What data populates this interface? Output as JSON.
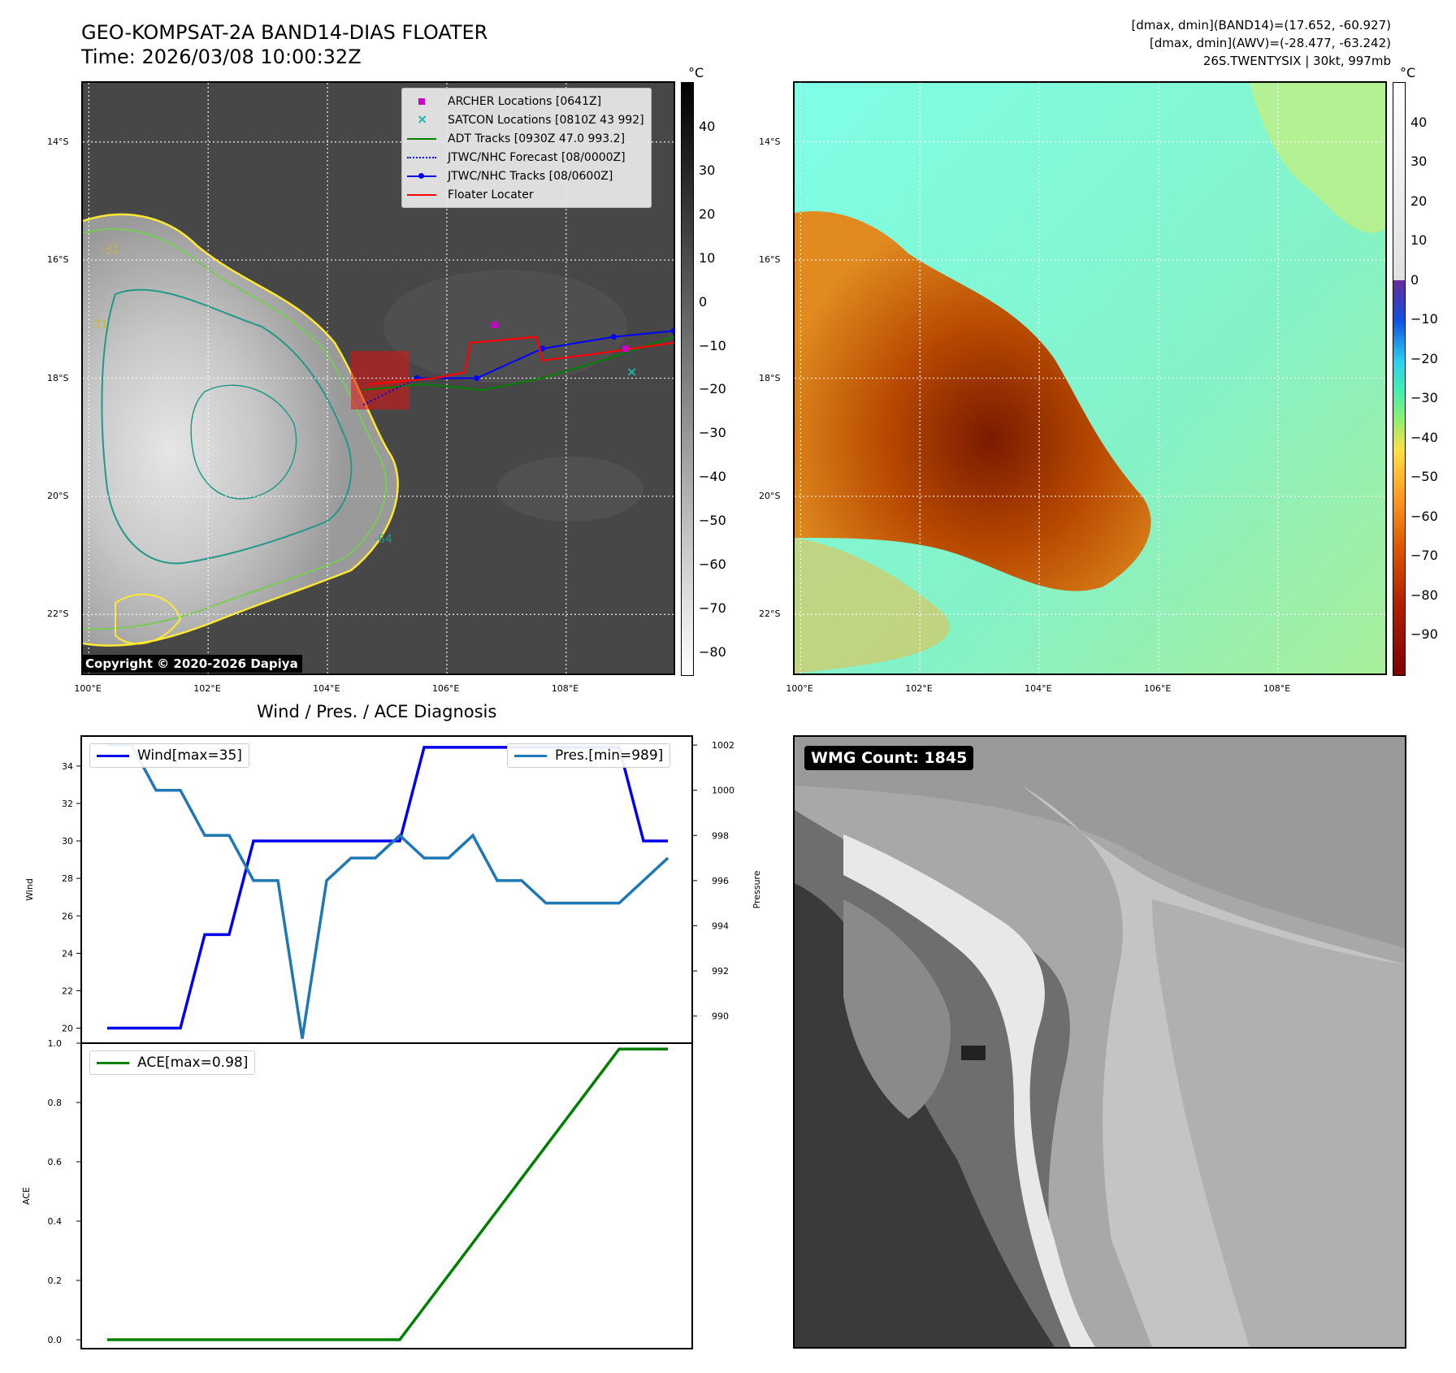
{
  "header": {
    "title_line1": "GEO-KOMPSAT-2A BAND14-DIAS FLOATER",
    "title_line2": "Time: 2026/03/08 10:00:32Z",
    "stat_line1": "[dmax, dmin](BAND14)=(17.652, -60.927)",
    "stat_line2": "[dmax, dmin](AWV)=(-28.477, -63.242)",
    "stat_line3": "26S.TWENTYSIX | 30kt, 997mb"
  },
  "map": {
    "lat_labels": [
      "14°S",
      "16°S",
      "18°S",
      "20°S",
      "22°S"
    ],
    "lon_labels": [
      "100°E",
      "102°E",
      "104°E",
      "106°E",
      "108°E"
    ],
    "lat_values": [
      -14,
      -16,
      -18,
      -20,
      -22
    ],
    "lon_values": [
      100,
      102,
      104,
      106,
      108
    ],
    "extent": {
      "lon_min": 99.9,
      "lon_max": 109.8,
      "lat_min": -23.0,
      "lat_max": -13.0
    },
    "copyright": "Copyright © 2020-2026 Dapiya",
    "contour_labels": [
      "-31",
      "-31",
      "-64"
    ]
  },
  "ir_colorbar": {
    "unit": "°C",
    "ticks": [
      "40",
      "30",
      "20",
      "10",
      "0",
      "−10",
      "−20",
      "−30",
      "−40",
      "−50",
      "−60",
      "−70",
      "−80"
    ],
    "tick_values": [
      40,
      30,
      20,
      10,
      0,
      -10,
      -20,
      -30,
      -40,
      -50,
      -60,
      -70,
      -80
    ],
    "range": [
      -85,
      50
    ]
  },
  "awv_colorbar": {
    "unit": "°C",
    "ticks": [
      "40",
      "30",
      "20",
      "10",
      "0",
      "−10",
      "−20",
      "−30",
      "−40",
      "−50",
      "−60",
      "−70",
      "−80",
      "−90"
    ],
    "tick_values": [
      40,
      30,
      20,
      10,
      0,
      -10,
      -20,
      -30,
      -40,
      -50,
      -60,
      -70,
      -80,
      -90
    ],
    "range": [
      -100,
      50
    ]
  },
  "legend": {
    "items": [
      {
        "label": "ARCHER Locations [0641Z]",
        "color": "#cc00cc",
        "symbol": "square"
      },
      {
        "label": "SATCON Locations [0810Z 43 992]",
        "color": "#20b2aa",
        "symbol": "x"
      },
      {
        "label": "ADT Tracks [0930Z 47.0 993.2]",
        "color": "#008000",
        "symbol": "line"
      },
      {
        "label": "JTWC/NHC Forecast [08/0000Z]",
        "color": "#0000ff",
        "symbol": "dotted"
      },
      {
        "label": "JTWC/NHC Tracks [08/0600Z]",
        "color": "#0000ff",
        "symbol": "line-dot"
      },
      {
        "label": "Floater Locater",
        "color": "#ff0000",
        "symbol": "line"
      }
    ]
  },
  "tracks": {
    "archer": [
      [
        106.8,
        -17.1
      ],
      [
        109.0,
        -17.5
      ]
    ],
    "satcon": [
      [
        109.1,
        -17.9
      ]
    ],
    "jtwc_tracks": [
      [
        105.5,
        -18.0
      ],
      [
        106.5,
        -18.0
      ],
      [
        107.6,
        -17.5
      ],
      [
        108.8,
        -17.3
      ],
      [
        109.8,
        -17.2
      ]
    ],
    "jtwc_forecast": [
      [
        104.6,
        -18.45
      ],
      [
        105.5,
        -18.0
      ]
    ],
    "adt": [
      [
        104.6,
        -18.2
      ],
      [
        105.6,
        -18.1
      ],
      [
        106.6,
        -18.2
      ],
      [
        107.6,
        -18.0
      ],
      [
        108.6,
        -17.7
      ],
      [
        109.8,
        -17.3
      ]
    ],
    "floater": [
      [
        104.7,
        -18.1
      ],
      [
        105.8,
        -18.0
      ],
      [
        106.3,
        -17.9
      ],
      [
        106.4,
        -17.4
      ],
      [
        107.5,
        -17.3
      ],
      [
        107.6,
        -17.7
      ],
      [
        108.4,
        -17.6
      ],
      [
        109.8,
        -17.4
      ]
    ]
  },
  "diagnosis": {
    "title": "Wind / Pres. / ACE Diagnosis",
    "wind_label": "Wind[max=35]",
    "pres_label": "Pres.[min=989]",
    "ace_label": "ACE[max=0.98]",
    "wind_axis_label": "Wind",
    "pres_axis_label": "Pressure",
    "ace_axis_label": "ACE",
    "wind_ticks": [
      "34",
      "32",
      "30",
      "28",
      "26",
      "24",
      "22",
      "20"
    ],
    "pres_ticks": [
      "1002",
      "1000",
      "998",
      "996",
      "994",
      "992",
      "990"
    ],
    "ace_ticks": [
      "1.0",
      "0.8",
      "0.6",
      "0.4",
      "0.2",
      "0.0"
    ],
    "wind_color": "#0000ee",
    "pres_color": "#1f77b4",
    "ace_color": "#008000"
  },
  "chart_data": [
    {
      "type": "line",
      "title": "Wind / Pres. / ACE Diagnosis",
      "x": [
        0,
        1,
        2,
        3,
        4,
        5,
        6,
        7,
        8,
        9,
        10,
        11,
        12,
        13,
        14,
        15,
        16,
        17,
        18,
        19,
        20,
        21,
        22,
        23
      ],
      "series": [
        {
          "name": "Wind[max=35]",
          "axis": "left",
          "ylabel": "Wind",
          "values": [
            20,
            20,
            20,
            20,
            25,
            25,
            30,
            30,
            30,
            30,
            30,
            30,
            30,
            35,
            35,
            35,
            35,
            35,
            35,
            35,
            35,
            35,
            30,
            30
          ]
        },
        {
          "name": "Pres.[min=989]",
          "axis": "right",
          "ylabel": "Pressure",
          "values": [
            1002,
            1002,
            1000,
            1000,
            998,
            998,
            996,
            996,
            989,
            996,
            997,
            997,
            998,
            997,
            997,
            998,
            996,
            996,
            995,
            995,
            995,
            995,
            996,
            997
          ]
        }
      ],
      "ylim_left": [
        19.2,
        35.6
      ],
      "ylim_right": [
        988.8,
        1002.4
      ]
    },
    {
      "type": "line",
      "x": [
        0,
        12,
        21,
        23
      ],
      "series": [
        {
          "name": "ACE[max=0.98]",
          "ylabel": "ACE",
          "values": [
            0.0,
            0.0,
            0.98,
            0.98
          ]
        }
      ],
      "ylim": [
        -0.03,
        1.0
      ]
    }
  ],
  "wmg": {
    "label": "WMG Count: 1845"
  }
}
